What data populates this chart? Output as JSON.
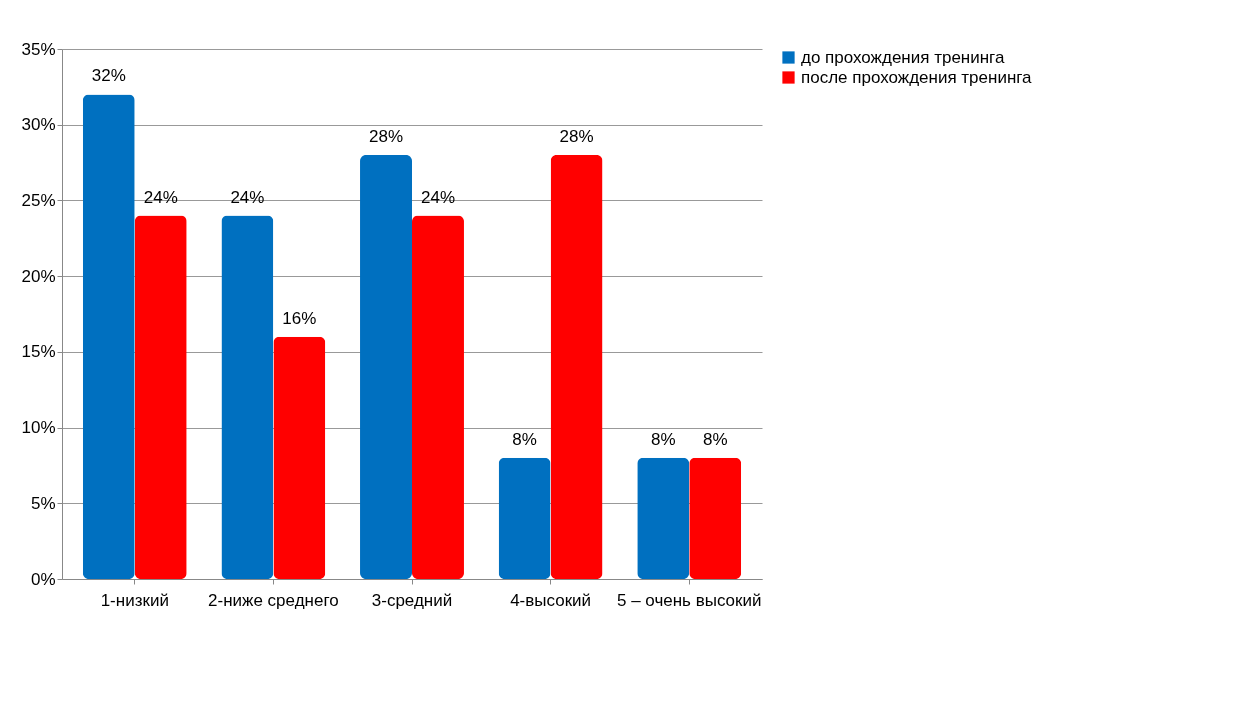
{
  "chart_data": {
    "type": "bar",
    "categories": [
      "1-низкий",
      "2-ниже среднего",
      "3-средний",
      "4-высокий",
      "5 – очень высокий"
    ],
    "series": [
      {
        "name": "до прохождения тренинга",
        "color": "#0070c0",
        "values": [
          32,
          24,
          28,
          8,
          8
        ],
        "value_labels": [
          "32%",
          "24%",
          "28%",
          "8%",
          "8%"
        ]
      },
      {
        "name": "после прохождения тренинга",
        "color": "#ff0000",
        "values": [
          24,
          16,
          24,
          28,
          8
        ],
        "value_labels": [
          "24%",
          "16%",
          "24%",
          "28%",
          "8%"
        ]
      }
    ],
    "ylim": [
      0,
      35
    ],
    "yticks": [
      {
        "value": 0,
        "label": "0%"
      },
      {
        "value": 5,
        "label": "5%"
      },
      {
        "value": 10,
        "label": "10%"
      },
      {
        "value": 15,
        "label": "15%"
      },
      {
        "value": 20,
        "label": "20%"
      },
      {
        "value": 25,
        "label": "25%"
      },
      {
        "value": 30,
        "label": "30%"
      },
      {
        "value": 35,
        "label": "35%"
      }
    ],
    "grid": "y",
    "legend": "right"
  }
}
